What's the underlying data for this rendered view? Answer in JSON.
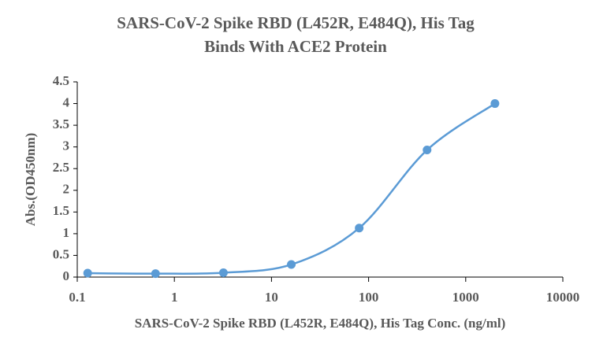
{
  "chart_data": {
    "type": "scatter-line",
    "title": [
      "SARS-CoV-2 Spike RBD (L452R, E484Q), His Tag",
      "Binds With ACE2 Protein"
    ],
    "x_label": "SARS-CoV-2 Spike RBD (L452R, E484Q), His Tag Conc. (ng/ml)",
    "y_label": "Abs.(OD450nm)",
    "x": [
      0.128,
      0.64,
      3.2,
      16,
      80,
      400,
      2000
    ],
    "series": [
      {
        "color": "#5b9bd5",
        "values": [
          0.09,
          0.08,
          0.1,
          0.29,
          1.13,
          2.93,
          4.0
        ]
      }
    ],
    "xlog": true,
    "xlim": [
      0.1,
      10000
    ],
    "xticks": [
      0.1,
      1,
      10,
      100,
      1000,
      10000
    ],
    "ylim": [
      0,
      4.5
    ],
    "yticks": [
      0,
      0.5,
      1,
      1.5,
      2,
      2.5,
      3,
      3.5,
      4,
      4.5
    ],
    "smooth": true
  }
}
